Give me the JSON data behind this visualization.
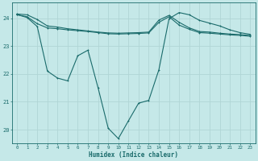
{
  "xlabel": "Humidex (Indice chaleur)",
  "background_color": "#c5e8e8",
  "grid_color": "#b0d5d5",
  "line_color": "#1a6b6b",
  "xlim": [
    -0.5,
    23.5
  ],
  "ylim": [
    19.5,
    24.55
  ],
  "yticks": [
    20,
    21,
    22,
    23,
    24
  ],
  "xticks": [
    0,
    1,
    2,
    3,
    4,
    5,
    6,
    7,
    8,
    9,
    10,
    11,
    12,
    13,
    14,
    15,
    16,
    17,
    18,
    19,
    20,
    21,
    22,
    23
  ],
  "series1_x": [
    0,
    1,
    2,
    3,
    4,
    5,
    6,
    7,
    8,
    9,
    10,
    11,
    12,
    13,
    14,
    15,
    16,
    17,
    18,
    19,
    20,
    21,
    22,
    23
  ],
  "series1_y": [
    24.15,
    24.12,
    23.95,
    23.72,
    23.68,
    23.62,
    23.58,
    23.54,
    23.5,
    23.47,
    23.46,
    23.47,
    23.48,
    23.5,
    23.93,
    24.1,
    23.85,
    23.65,
    23.52,
    23.5,
    23.46,
    23.43,
    23.41,
    23.38
  ],
  "series2_x": [
    0,
    1,
    2,
    3,
    4,
    5,
    6,
    7,
    8,
    9,
    10,
    11,
    12,
    13,
    14,
    15,
    16,
    17,
    18,
    19,
    20,
    21,
    22,
    23
  ],
  "series2_y": [
    24.12,
    24.05,
    23.8,
    23.65,
    23.62,
    23.58,
    23.55,
    23.52,
    23.48,
    23.44,
    23.43,
    23.44,
    23.45,
    23.47,
    23.85,
    24.05,
    23.75,
    23.6,
    23.48,
    23.46,
    23.43,
    23.4,
    23.38,
    23.35
  ],
  "series3_x": [
    0,
    1,
    2,
    3,
    4,
    5,
    6,
    7,
    8,
    9,
    10,
    11,
    12,
    13,
    14,
    15,
    16,
    17,
    18,
    19,
    20,
    21,
    22,
    23
  ],
  "series3_y": [
    24.13,
    24.02,
    23.7,
    22.1,
    21.85,
    21.75,
    22.65,
    22.85,
    21.5,
    20.05,
    19.68,
    20.32,
    20.95,
    21.05,
    22.15,
    23.98,
    24.2,
    24.12,
    23.92,
    23.82,
    23.72,
    23.58,
    23.48,
    23.42
  ]
}
